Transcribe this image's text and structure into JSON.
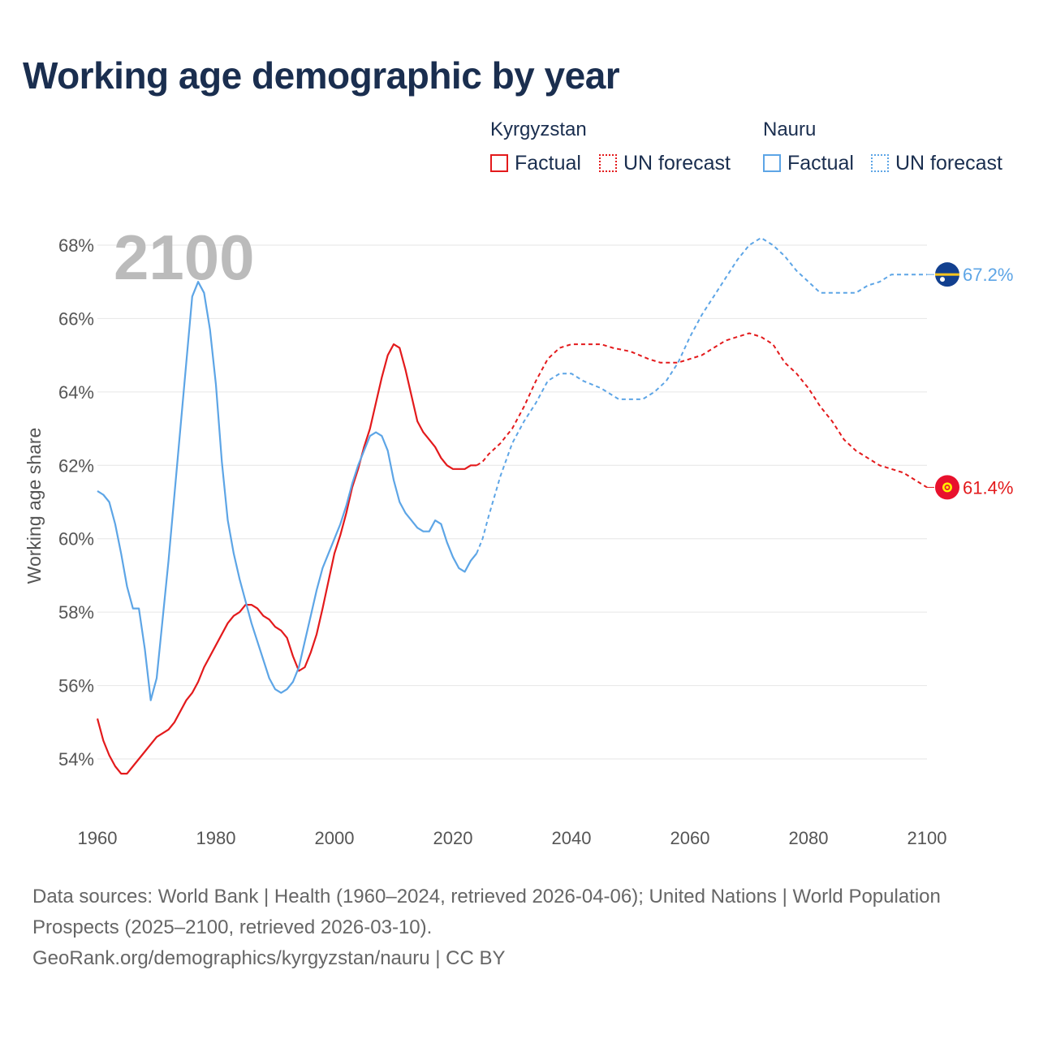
{
  "title": "Working age demographic by year",
  "legend": {
    "countries": [
      {
        "name": "Kyrgyzstan",
        "factual_label": "Factual",
        "forecast_label": "UN forecast",
        "color": "#e31a1c"
      },
      {
        "name": "Nauru",
        "factual_label": "Factual",
        "forecast_label": "UN forecast",
        "color": "#5da5e6"
      }
    ]
  },
  "year_display": "2100",
  "footer": {
    "sources": "Data sources: World Bank | Health (1960–2024, retrieved 2026-04-06); United Nations | World Population Prospects (2025–2100, retrieved 2026-03-10).",
    "credit": "GeoRank.org/demographics/kyrgyzstan/nauru | CC BY"
  },
  "chart_data": {
    "type": "line",
    "title": "Working age demographic by year",
    "xlabel": "",
    "ylabel": "Working age share",
    "xlim": [
      1960,
      2100
    ],
    "ylim": [
      52.5,
      69
    ],
    "x_ticks": [
      1960,
      1980,
      2000,
      2020,
      2040,
      2060,
      2080,
      2100
    ],
    "x_tick_labels": [
      "1960",
      "1980",
      "2000",
      "2020",
      "2040",
      "2060",
      "2080",
      "2100"
    ],
    "y_ticks": [
      54,
      56,
      58,
      60,
      62,
      64,
      66,
      68
    ],
    "y_tick_labels": [
      "54%",
      "56%",
      "58%",
      "60%",
      "62%",
      "64%",
      "66%",
      "68%"
    ],
    "factual_until": 2024,
    "series": [
      {
        "name": "Kyrgyzstan",
        "color": "#e31a1c",
        "end_label": "61.4%",
        "flag": "kyrgyzstan",
        "points": [
          [
            1960,
            55.1
          ],
          [
            1961,
            54.5
          ],
          [
            1962,
            54.1
          ],
          [
            1963,
            53.8
          ],
          [
            1964,
            53.6
          ],
          [
            1965,
            53.6
          ],
          [
            1966,
            53.8
          ],
          [
            1968,
            54.2
          ],
          [
            1970,
            54.6
          ],
          [
            1972,
            54.8
          ],
          [
            1973,
            55.0
          ],
          [
            1975,
            55.6
          ],
          [
            1976,
            55.8
          ],
          [
            1977,
            56.1
          ],
          [
            1978,
            56.5
          ],
          [
            1980,
            57.1
          ],
          [
            1982,
            57.7
          ],
          [
            1983,
            57.9
          ],
          [
            1984,
            58.0
          ],
          [
            1985,
            58.2
          ],
          [
            1986,
            58.2
          ],
          [
            1987,
            58.1
          ],
          [
            1988,
            57.9
          ],
          [
            1989,
            57.8
          ],
          [
            1990,
            57.6
          ],
          [
            1991,
            57.5
          ],
          [
            1992,
            57.3
          ],
          [
            1993,
            56.8
          ],
          [
            1994,
            56.4
          ],
          [
            1995,
            56.5
          ],
          [
            1996,
            56.9
          ],
          [
            1997,
            57.4
          ],
          [
            1998,
            58.1
          ],
          [
            2000,
            59.6
          ],
          [
            2001,
            60.1
          ],
          [
            2002,
            60.7
          ],
          [
            2003,
            61.4
          ],
          [
            2004,
            61.9
          ],
          [
            2005,
            62.5
          ],
          [
            2006,
            63.0
          ],
          [
            2007,
            63.7
          ],
          [
            2008,
            64.4
          ],
          [
            2009,
            65.0
          ],
          [
            2010,
            65.3
          ],
          [
            2011,
            65.2
          ],
          [
            2012,
            64.6
          ],
          [
            2013,
            63.9
          ],
          [
            2014,
            63.2
          ],
          [
            2015,
            62.9
          ],
          [
            2016,
            62.7
          ],
          [
            2017,
            62.5
          ],
          [
            2018,
            62.2
          ],
          [
            2019,
            62.0
          ],
          [
            2020,
            61.9
          ],
          [
            2021,
            61.9
          ],
          [
            2022,
            61.9
          ],
          [
            2023,
            62.0
          ],
          [
            2024,
            62.0
          ],
          [
            2025,
            62.1
          ],
          [
            2026,
            62.3
          ],
          [
            2028,
            62.6
          ],
          [
            2030,
            63.0
          ],
          [
            2032,
            63.6
          ],
          [
            2034,
            64.3
          ],
          [
            2036,
            64.9
          ],
          [
            2038,
            65.2
          ],
          [
            2040,
            65.3
          ],
          [
            2043,
            65.3
          ],
          [
            2045,
            65.3
          ],
          [
            2047,
            65.2
          ],
          [
            2050,
            65.1
          ],
          [
            2053,
            64.9
          ],
          [
            2055,
            64.8
          ],
          [
            2058,
            64.8
          ],
          [
            2060,
            64.9
          ],
          [
            2062,
            65.0
          ],
          [
            2064,
            65.2
          ],
          [
            2066,
            65.4
          ],
          [
            2068,
            65.5
          ],
          [
            2070,
            65.6
          ],
          [
            2072,
            65.5
          ],
          [
            2074,
            65.3
          ],
          [
            2076,
            64.8
          ],
          [
            2078,
            64.5
          ],
          [
            2080,
            64.1
          ],
          [
            2082,
            63.6
          ],
          [
            2084,
            63.2
          ],
          [
            2086,
            62.7
          ],
          [
            2088,
            62.4
          ],
          [
            2090,
            62.2
          ],
          [
            2092,
            62.0
          ],
          [
            2094,
            61.9
          ],
          [
            2096,
            61.8
          ],
          [
            2098,
            61.6
          ],
          [
            2100,
            61.4
          ]
        ]
      },
      {
        "name": "Nauru",
        "color": "#5da5e6",
        "end_label": "67.2%",
        "flag": "nauru",
        "points": [
          [
            1960,
            61.3
          ],
          [
            1961,
            61.2
          ],
          [
            1962,
            61.0
          ],
          [
            1963,
            60.4
          ],
          [
            1964,
            59.6
          ],
          [
            1965,
            58.7
          ],
          [
            1966,
            58.1
          ],
          [
            1967,
            58.1
          ],
          [
            1968,
            57.0
          ],
          [
            1969,
            55.6
          ],
          [
            1970,
            56.2
          ],
          [
            1971,
            57.8
          ],
          [
            1972,
            59.4
          ],
          [
            1973,
            61.2
          ],
          [
            1974,
            63.0
          ],
          [
            1975,
            64.8
          ],
          [
            1976,
            66.6
          ],
          [
            1977,
            67.0
          ],
          [
            1978,
            66.7
          ],
          [
            1979,
            65.7
          ],
          [
            1980,
            64.2
          ],
          [
            1981,
            62.1
          ],
          [
            1982,
            60.5
          ],
          [
            1983,
            59.6
          ],
          [
            1984,
            58.9
          ],
          [
            1985,
            58.3
          ],
          [
            1986,
            57.7
          ],
          [
            1987,
            57.2
          ],
          [
            1988,
            56.7
          ],
          [
            1989,
            56.2
          ],
          [
            1990,
            55.9
          ],
          [
            1991,
            55.8
          ],
          [
            1992,
            55.9
          ],
          [
            1993,
            56.1
          ],
          [
            1994,
            56.5
          ],
          [
            1995,
            57.2
          ],
          [
            1996,
            57.9
          ],
          [
            1997,
            58.6
          ],
          [
            1998,
            59.2
          ],
          [
            1999,
            59.6
          ],
          [
            2000,
            60.0
          ],
          [
            2001,
            60.4
          ],
          [
            2002,
            60.9
          ],
          [
            2003,
            61.5
          ],
          [
            2004,
            62.0
          ],
          [
            2005,
            62.4
          ],
          [
            2006,
            62.8
          ],
          [
            2007,
            62.9
          ],
          [
            2008,
            62.8
          ],
          [
            2009,
            62.4
          ],
          [
            2010,
            61.6
          ],
          [
            2011,
            61.0
          ],
          [
            2012,
            60.7
          ],
          [
            2013,
            60.5
          ],
          [
            2014,
            60.3
          ],
          [
            2015,
            60.2
          ],
          [
            2016,
            60.2
          ],
          [
            2017,
            60.5
          ],
          [
            2018,
            60.4
          ],
          [
            2019,
            59.9
          ],
          [
            2020,
            59.5
          ],
          [
            2021,
            59.2
          ],
          [
            2022,
            59.1
          ],
          [
            2023,
            59.4
          ],
          [
            2024,
            59.6
          ],
          [
            2025,
            60.0
          ],
          [
            2026,
            60.6
          ],
          [
            2028,
            61.7
          ],
          [
            2030,
            62.6
          ],
          [
            2032,
            63.2
          ],
          [
            2034,
            63.7
          ],
          [
            2036,
            64.3
          ],
          [
            2038,
            64.5
          ],
          [
            2040,
            64.5
          ],
          [
            2042,
            64.3
          ],
          [
            2045,
            64.1
          ],
          [
            2048,
            63.8
          ],
          [
            2050,
            63.8
          ],
          [
            2052,
            63.8
          ],
          [
            2054,
            64.0
          ],
          [
            2056,
            64.3
          ],
          [
            2058,
            64.8
          ],
          [
            2060,
            65.5
          ],
          [
            2062,
            66.1
          ],
          [
            2064,
            66.6
          ],
          [
            2066,
            67.1
          ],
          [
            2068,
            67.6
          ],
          [
            2070,
            68.0
          ],
          [
            2072,
            68.2
          ],
          [
            2074,
            68.0
          ],
          [
            2076,
            67.7
          ],
          [
            2078,
            67.3
          ],
          [
            2080,
            67.0
          ],
          [
            2082,
            66.7
          ],
          [
            2085,
            66.7
          ],
          [
            2088,
            66.7
          ],
          [
            2090,
            66.9
          ],
          [
            2092,
            67.0
          ],
          [
            2094,
            67.2
          ],
          [
            2097,
            67.2
          ],
          [
            2100,
            67.2
          ]
        ]
      }
    ]
  }
}
